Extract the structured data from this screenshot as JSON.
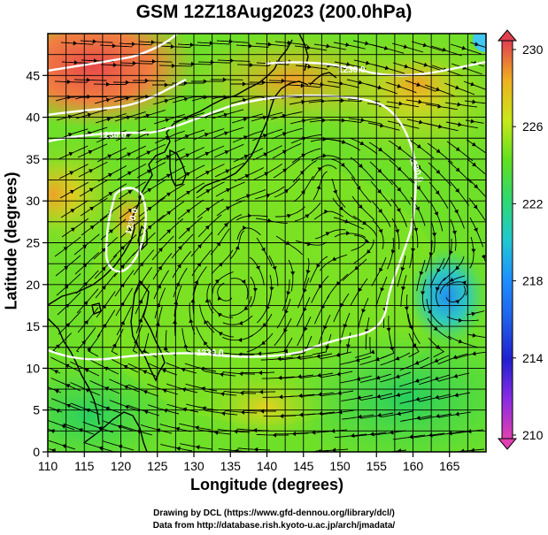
{
  "title": "GSM 12Z18Aug2023 (200.0hPa)",
  "axes": {
    "xlabel": "Longitude (degrees)",
    "ylabel": "Latitude  (degrees)",
    "xlim": [
      110,
      170
    ],
    "ylim": [
      0,
      50
    ],
    "xticks": [
      110,
      115,
      120,
      125,
      130,
      135,
      140,
      145,
      150,
      155,
      160,
      165
    ],
    "yticks": [
      0,
      5,
      10,
      15,
      20,
      25,
      30,
      35,
      40,
      45
    ],
    "grid_step": 2.5
  },
  "colorbar": {
    "ticks": [
      "230",
      "226",
      "222",
      "218",
      "214",
      "210"
    ],
    "range": [
      210,
      230
    ],
    "colors": [
      "#e040b0",
      "#8a2be2",
      "#2020d0",
      "#1e90ff",
      "#20c8d0",
      "#30d870",
      "#60e020",
      "#c8e818",
      "#f0b020",
      "#f06030",
      "#e04050"
    ]
  },
  "contours": {
    "labels": [
      "1230.0",
      "1230.0",
      "1230.0",
      "1230.0",
      "1230.0"
    ]
  },
  "credits": {
    "line1": "Drawing by DCL (https://www.gfd-dennou.org/library/dcl/)",
    "line2": "Data from http://database.rish.kyoto-u.ac.jp/arch/jmadata/"
  }
}
